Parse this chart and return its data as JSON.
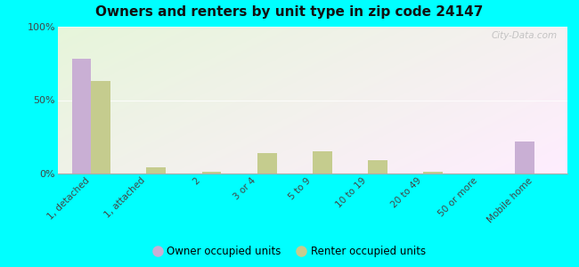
{
  "title": "Owners and renters by unit type in zip code 24147",
  "categories": [
    "1, detached",
    "1, attached",
    "2",
    "3 or 4",
    "5 to 9",
    "10 to 19",
    "20 to 49",
    "50 or more",
    "Mobile home"
  ],
  "owner_values": [
    78,
    0,
    0,
    0,
    0,
    0,
    0,
    0,
    22
  ],
  "renter_values": [
    63,
    4,
    1,
    14,
    15,
    9,
    1,
    0,
    0
  ],
  "owner_color": "#c9afd4",
  "renter_color": "#c5cc8e",
  "background_outer": "#00ffff",
  "ylabel_ticks": [
    "0%",
    "50%",
    "100%"
  ],
  "ytick_vals": [
    0,
    50,
    100
  ],
  "ylim": [
    0,
    100
  ],
  "bar_width": 0.35,
  "legend_owner": "Owner occupied units",
  "legend_renter": "Renter occupied units",
  "watermark": "City-Data.com"
}
